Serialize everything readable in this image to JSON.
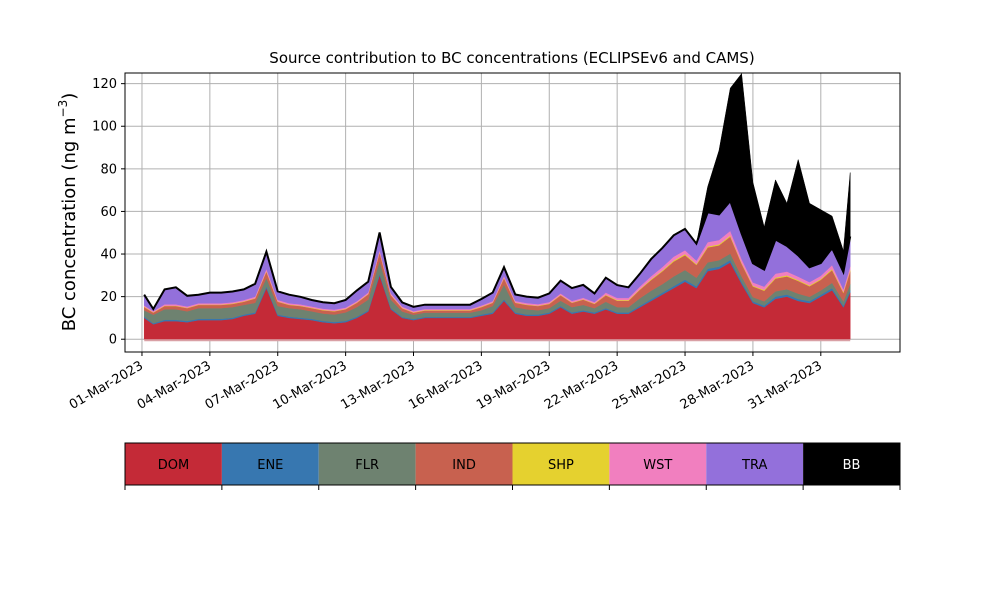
{
  "chart_data": {
    "type": "area",
    "stacked": true,
    "title": "Source contribution to BC concentrations (ECLIPSEv6 and CAMS)",
    "xlabel": "",
    "ylabel": "BC concentration (ng m",
    "ylabel_superscript": "−3",
    "ylabel_suffix": ")",
    "ylim": [
      -6,
      125
    ],
    "yticks": [
      0,
      20,
      40,
      60,
      80,
      100,
      120
    ],
    "grid": true,
    "x_unit": "days since 01-Mar-2023",
    "xlim": [
      -0.75,
      33.5
    ],
    "xticks": [
      {
        "day": 0,
        "label": "01-Mar-2023"
      },
      {
        "day": 3,
        "label": "04-Mar-2023"
      },
      {
        "day": 6,
        "label": "07-Mar-2023"
      },
      {
        "day": 9,
        "label": "10-Mar-2023"
      },
      {
        "day": 12,
        "label": "13-Mar-2023"
      },
      {
        "day": 15,
        "label": "16-Mar-2023"
      },
      {
        "day": 18,
        "label": "19-Mar-2023"
      },
      {
        "day": 21,
        "label": "22-Mar-2023"
      },
      {
        "day": 24,
        "label": "25-Mar-2023"
      },
      {
        "day": 27,
        "label": "28-Mar-2023"
      },
      {
        "day": 30,
        "label": "31-Mar-2023"
      }
    ],
    "x": [
      0.1,
      0.5,
      1,
      1.5,
      2,
      2.5,
      3,
      3.5,
      4,
      4.5,
      5,
      5.5,
      6,
      6.5,
      7,
      7.5,
      8,
      8.5,
      9,
      9.5,
      10,
      10.5,
      11,
      11.5,
      12,
      12.5,
      13,
      13.5,
      14,
      14.5,
      15,
      15.5,
      16,
      16.5,
      17,
      17.5,
      18,
      18.5,
      19,
      19.5,
      20,
      20.5,
      21,
      21.5,
      22,
      22.5,
      23,
      23.5,
      24,
      24.5,
      25,
      25.5,
      26,
      26.5,
      27,
      27.5,
      28,
      28.5,
      29,
      29.5,
      30,
      30.5,
      31,
      31.3
    ],
    "total_line_series": "TRA",
    "series": [
      {
        "name": "DOM",
        "color": "#c42a37",
        "values": [
          10,
          7,
          8.5,
          8.5,
          8,
          9,
          9,
          9,
          9.5,
          11,
          12,
          24,
          11,
          10,
          9.5,
          9,
          8,
          7.5,
          8,
          10,
          13,
          30,
          14,
          10,
          9,
          10,
          10,
          10,
          10,
          10,
          11,
          12,
          18,
          12,
          11,
          11,
          12,
          15,
          12,
          13,
          12,
          14,
          12,
          12,
          15,
          18,
          21,
          24,
          27,
          24,
          32,
          33,
          36,
          26,
          17,
          15,
          19,
          20,
          18,
          17,
          20,
          23,
          15,
          22
        ]
      },
      {
        "name": "ENE",
        "color": "#3777b0",
        "values": [
          0.6,
          0.5,
          0.6,
          0.6,
          0.6,
          0.6,
          0.6,
          0.6,
          0.6,
          0.6,
          0.6,
          0.8,
          0.6,
          0.6,
          0.6,
          0.6,
          0.6,
          0.6,
          0.6,
          0.6,
          0.6,
          0.8,
          0.6,
          0.5,
          0.5,
          0.5,
          0.5,
          0.5,
          0.5,
          0.5,
          0.6,
          0.6,
          0.7,
          0.6,
          0.6,
          0.6,
          0.6,
          0.6,
          0.6,
          0.6,
          0.6,
          0.6,
          0.6,
          0.6,
          0.7,
          0.8,
          0.9,
          1,
          1,
          0.9,
          1.1,
          1.1,
          1.2,
          1,
          0.8,
          0.8,
          1,
          1,
          0.9,
          0.9,
          0.9,
          1,
          0.8,
          1
        ]
      },
      {
        "name": "FLR",
        "color": "#6e8270",
        "values": [
          3,
          4,
          5,
          5,
          4.5,
          5,
          5,
          5,
          5,
          4.5,
          4.5,
          4,
          4,
          4,
          4,
          3.5,
          3.5,
          3.5,
          4,
          4.5,
          5,
          6,
          4,
          2.5,
          2,
          2,
          2,
          2,
          2,
          2,
          2,
          3,
          7,
          2.5,
          2.5,
          2,
          2,
          2.5,
          2.5,
          2.5,
          2,
          3,
          2.5,
          2.5,
          3.5,
          4,
          4,
          4.5,
          4.5,
          4,
          3,
          3,
          3,
          2.5,
          2,
          2,
          2.5,
          2.5,
          2.5,
          2,
          2,
          2.5,
          2,
          3
        ]
      },
      {
        "name": "IND",
        "color": "#c8614f",
        "values": [
          1.5,
          1,
          1.5,
          1.5,
          1.5,
          1.5,
          1.5,
          1.5,
          1.5,
          1.5,
          2,
          3,
          2,
          1.5,
          1.5,
          1.5,
          1.5,
          1.5,
          1.5,
          2,
          2.5,
          4,
          2,
          1.5,
          1,
          1,
          1,
          1,
          1,
          1,
          1.5,
          1.5,
          3,
          2,
          2,
          2,
          2,
          2.5,
          2,
          2.5,
          2,
          3,
          3,
          3,
          4,
          5,
          6,
          7,
          7,
          6,
          7,
          7,
          8,
          6,
          5,
          5,
          6,
          6,
          6,
          5,
          5,
          6,
          4,
          6
        ]
      },
      {
        "name": "SHP",
        "color": "#e5d12f",
        "values": [
          0.2,
          0.2,
          0.2,
          0.2,
          0.2,
          0.2,
          0.2,
          0.2,
          0.2,
          0.2,
          0.2,
          0.3,
          0.2,
          0.2,
          0.2,
          0.2,
          0.2,
          0.2,
          0.2,
          0.2,
          0.2,
          0.3,
          0.2,
          0.2,
          0.2,
          0.2,
          0.2,
          0.2,
          0.2,
          0.2,
          0.2,
          0.2,
          0.3,
          0.2,
          0.2,
          0.2,
          0.2,
          0.2,
          0.2,
          0.2,
          0.2,
          0.3,
          0.3,
          0.3,
          0.3,
          0.4,
          0.4,
          0.5,
          0.5,
          0.4,
          0.5,
          0.5,
          0.5,
          0.4,
          0.4,
          0.4,
          0.5,
          0.5,
          0.4,
          0.4,
          0.4,
          0.5,
          0.4,
          0.5
        ]
      },
      {
        "name": "WST",
        "color": "#f17fbf",
        "values": [
          0.6,
          0.5,
          0.6,
          0.6,
          0.6,
          0.6,
          0.6,
          0.6,
          0.6,
          0.6,
          0.7,
          1,
          0.7,
          0.6,
          0.6,
          0.6,
          0.6,
          0.6,
          0.6,
          0.6,
          0.7,
          1,
          0.7,
          0.6,
          0.5,
          0.5,
          0.5,
          0.5,
          0.5,
          0.5,
          0.6,
          0.6,
          0.8,
          0.7,
          0.7,
          0.7,
          0.7,
          0.7,
          0.7,
          0.7,
          0.7,
          1,
          1,
          1,
          1.2,
          1.4,
          1.6,
          1.8,
          1.8,
          1.6,
          2,
          2,
          2.2,
          1.8,
          1.5,
          1.5,
          1.8,
          1.8,
          1.6,
          1.5,
          1.5,
          1.8,
          1.3,
          1.8
        ]
      },
      {
        "name": "TRA",
        "color": "#9370db",
        "values": [
          5,
          1,
          7,
          8,
          5,
          4,
          5,
          5,
          5,
          5,
          6,
          8,
          4,
          4,
          3.5,
          3,
          3,
          3,
          3.5,
          5,
          5,
          8,
          3,
          2,
          2,
          2,
          2,
          2,
          2,
          2,
          3,
          4,
          4,
          3,
          3,
          3,
          4,
          6,
          6,
          6,
          4,
          7,
          6,
          5,
          6,
          8,
          9,
          10,
          10,
          8,
          14,
          12,
          14,
          12,
          9,
          8,
          16,
          12,
          10,
          7,
          6,
          8,
          8,
          14
        ]
      },
      {
        "name": "BB",
        "color": "#000000",
        "values": [
          0,
          0,
          0,
          0,
          0,
          0,
          0,
          0,
          0,
          0,
          0,
          0,
          0,
          0,
          0,
          0,
          0,
          0,
          0,
          0,
          0,
          0,
          0,
          0,
          0,
          0,
          0,
          0,
          0,
          0,
          0,
          0,
          0,
          0,
          0,
          0,
          0,
          0,
          0,
          0,
          0,
          0,
          0,
          0,
          0,
          0,
          0,
          0,
          0,
          0,
          12,
          30,
          53,
          75,
          38,
          20,
          28,
          20,
          45,
          30,
          25,
          15,
          10,
          30
        ]
      }
    ],
    "legend": {
      "placement": "bottom",
      "style": "colorbar",
      "entries": [
        "DOM",
        "ENE",
        "FLR",
        "IND",
        "SHP",
        "WST",
        "TRA",
        "BB"
      ]
    }
  }
}
